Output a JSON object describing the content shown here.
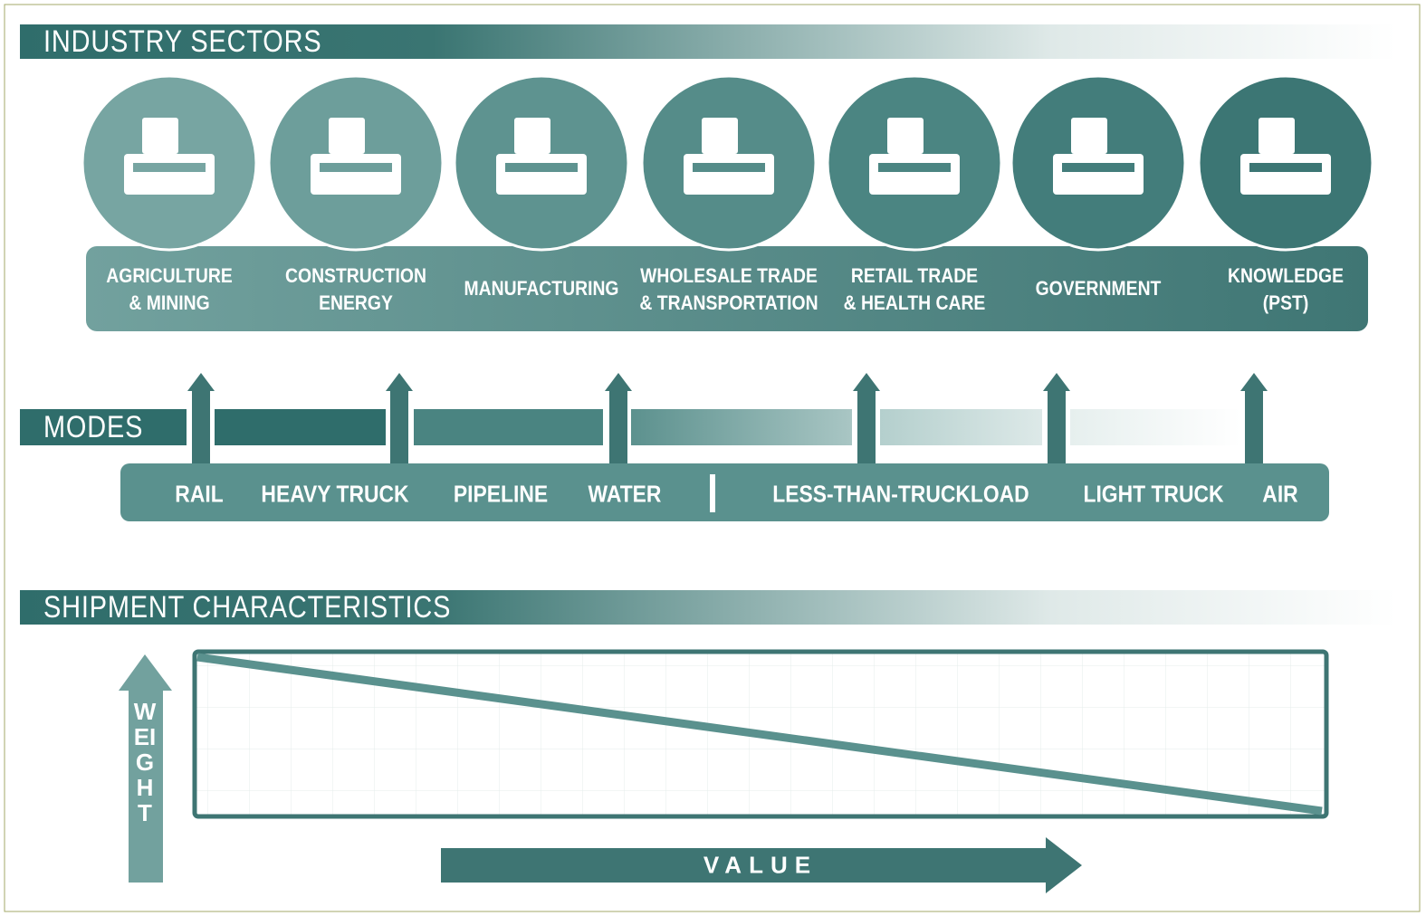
{
  "industry_sectors": {
    "title": "INDUSTRY SECTORS",
    "sectors": [
      [
        "AGRICULTURE",
        "& MINING"
      ],
      [
        "CONSTRUCTION",
        "ENERGY"
      ],
      [
        "MANUFACTURING"
      ],
      [
        "WHOLESALE TRADE",
        "& TRANSPORTATION"
      ],
      [
        "RETAIL TRADE",
        "& HEALTH CARE"
      ],
      [
        "GOVERNMENT"
      ],
      [
        "KNOWLEDGE",
        "(PST)"
      ]
    ]
  },
  "modes": {
    "title": "MODES",
    "items": [
      "RAIL",
      "HEAVY TRUCK",
      "PIPELINE",
      "WATER",
      "LESS-THAN-TRUCKLOAD",
      "LIGHT TRUCK",
      "AIR"
    ]
  },
  "shipment_characteristics": {
    "title": "SHIPMENT CHARACTERISTICS",
    "y_axis_label": "WEIGHT",
    "x_axis_label": "VALUE"
  }
}
